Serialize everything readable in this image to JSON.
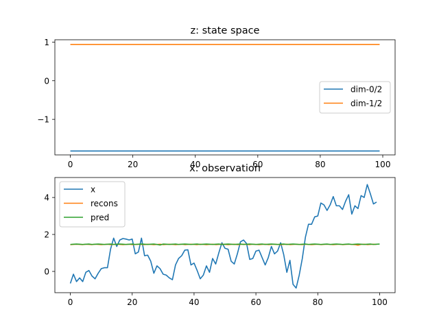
{
  "chart_data": [
    {
      "type": "line",
      "title": "z: state space",
      "xlabel": "",
      "ylabel": "",
      "xlim": [
        -4.95,
        103.95
      ],
      "ylim": [
        -1.92,
        1.06
      ],
      "xticks": [
        0,
        20,
        40,
        60,
        80,
        100
      ],
      "yticks": [
        -1,
        0,
        1
      ],
      "ytick_labels": [
        "−1",
        "0",
        "1"
      ],
      "legend_position": "center-right",
      "series": [
        {
          "name": "dim-0/2",
          "color": "#1f77b4",
          "x": [
            0,
            99
          ],
          "values": [
            -1.82,
            -1.82
          ]
        },
        {
          "name": "dim-1/2",
          "color": "#ff7f0e",
          "x": [
            0,
            99
          ],
          "values": [
            0.94,
            0.94
          ]
        }
      ]
    },
    {
      "type": "line",
      "title": "x: observation",
      "xlabel": "",
      "ylabel": "",
      "xlim": [
        -5,
        105
      ],
      "ylim": [
        -1.15,
        5.08
      ],
      "xticks": [
        0,
        20,
        40,
        60,
        80,
        100
      ],
      "yticks": [
        0,
        2,
        4
      ],
      "ytick_labels": [
        "0",
        "2",
        "4"
      ],
      "legend_position": "upper-left",
      "series": [
        {
          "name": "x",
          "color": "#1f77b4",
          "x_start": 0,
          "values": [
            -0.65,
            -0.15,
            -0.55,
            -0.35,
            -0.55,
            -0.05,
            0.05,
            -0.25,
            -0.4,
            -0.1,
            0.15,
            0.2,
            0.2,
            1.2,
            1.8,
            1.35,
            1.7,
            1.78,
            1.75,
            1.7,
            1.75,
            0.95,
            1.05,
            1.8,
            0.85,
            0.88,
            0.55,
            -0.1,
            0.3,
            0.15,
            -0.15,
            -0.2,
            -0.35,
            -0.45,
            0.35,
            0.7,
            0.85,
            1.15,
            1.17,
            0.35,
            0.45,
            0.05,
            -0.4,
            -0.2,
            0.3,
            -0.05,
            0.7,
            0.4,
            1.0,
            1.55,
            1.25,
            1.2,
            0.55,
            0.4,
            0.95,
            1.6,
            1.7,
            1.5,
            0.65,
            0.7,
            1.1,
            1.15,
            0.75,
            0.35,
            0.75,
            1.35,
            0.95,
            1.1,
            1.55,
            0.9,
            -0.05,
            0.6,
            -0.7,
            -0.9,
            -0.2,
            0.7,
            1.85,
            2.55,
            2.55,
            2.95,
            3.0,
            3.7,
            3.6,
            3.3,
            3.6,
            4.05,
            3.55,
            3.55,
            3.35,
            3.8,
            4.15,
            3.1,
            3.55,
            3.4,
            4.1,
            4.0,
            4.7,
            4.2,
            3.65,
            3.75
          ]
        },
        {
          "name": "recons",
          "color": "#ff7f0e",
          "x_start": 0,
          "values": [
            1.45,
            1.46,
            1.47,
            1.46,
            1.45,
            1.47,
            1.46,
            1.45,
            1.47,
            1.46,
            1.45,
            1.46,
            1.47,
            1.45,
            1.46,
            1.47,
            1.46,
            1.45,
            1.46,
            1.47,
            1.45,
            1.46,
            1.47,
            1.46,
            1.45,
            1.47,
            1.46,
            1.45,
            1.46,
            1.47,
            1.45,
            1.46,
            1.47,
            1.46,
            1.45,
            1.46,
            1.47,
            1.45,
            1.46,
            1.47,
            1.46,
            1.45,
            1.47,
            1.46,
            1.45,
            1.46,
            1.47,
            1.45,
            1.46,
            1.47,
            1.46,
            1.45,
            1.46,
            1.47,
            1.45,
            1.46,
            1.47,
            1.46,
            1.45,
            1.47,
            1.46,
            1.45,
            1.46,
            1.47,
            1.45,
            1.46,
            1.47,
            1.46,
            1.45,
            1.46,
            1.47,
            1.45,
            1.46,
            1.47,
            1.46,
            1.45,
            1.47,
            1.46,
            1.45,
            1.46,
            1.47,
            1.45,
            1.46,
            1.47,
            1.46,
            1.45,
            1.46,
            1.47,
            1.45,
            1.46,
            1.47,
            1.46,
            1.45,
            1.42,
            1.46,
            1.47,
            1.45,
            1.46,
            1.47,
            1.46
          ]
        },
        {
          "name": "pred",
          "color": "#2ca02c",
          "x_start": 0,
          "values": [
            1.46,
            1.47,
            1.48,
            1.47,
            1.46,
            1.47,
            1.48,
            1.46,
            1.47,
            1.48,
            1.47,
            1.46,
            1.47,
            1.48,
            1.46,
            1.47,
            1.48,
            1.47,
            1.46,
            1.47,
            1.48,
            1.46,
            1.47,
            1.48,
            1.47,
            1.46,
            1.47,
            1.48,
            1.46,
            1.43,
            1.48,
            1.47,
            1.46,
            1.47,
            1.48,
            1.46,
            1.47,
            1.48,
            1.47,
            1.46,
            1.47,
            1.48,
            1.46,
            1.47,
            1.48,
            1.47,
            1.46,
            1.47,
            1.48,
            1.46,
            1.47,
            1.48,
            1.47,
            1.46,
            1.47,
            1.48,
            1.46,
            1.47,
            1.48,
            1.47,
            1.46,
            1.47,
            1.48,
            1.46,
            1.47,
            1.48,
            1.47,
            1.46,
            1.47,
            1.48,
            1.46,
            1.47,
            1.48,
            1.47,
            1.46,
            1.47,
            1.48,
            1.46,
            1.47,
            1.48,
            1.47,
            1.46,
            1.47,
            1.48,
            1.46,
            1.47,
            1.48,
            1.47,
            1.46,
            1.47,
            1.48,
            1.46,
            1.47,
            1.48,
            1.47,
            1.46,
            1.47,
            1.48,
            1.46,
            1.47,
            1.48
          ]
        }
      ]
    }
  ]
}
